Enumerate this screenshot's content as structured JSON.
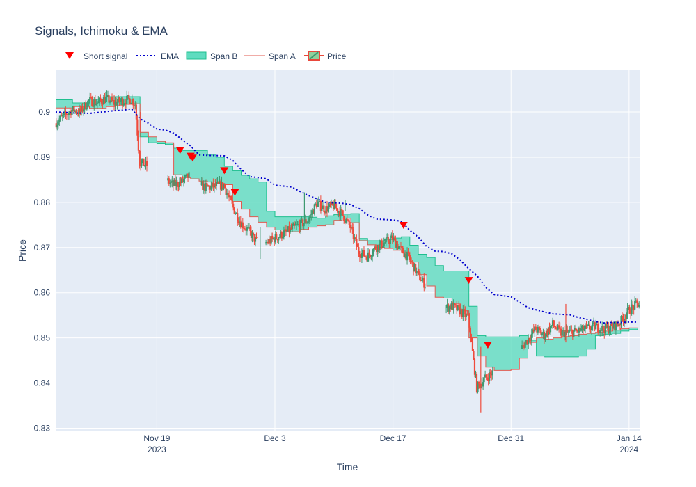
{
  "chart_data": {
    "type": "candlestick",
    "title": "Signals, Ichimoku & EMA",
    "xlabel": "Time",
    "ylabel": "Price",
    "ylim": [
      0.8293,
      0.9094
    ],
    "xlim": [
      "2023-11-07",
      "2024-01-15T08:00"
    ],
    "yticks": [
      0.83,
      0.84,
      0.85,
      0.86,
      0.87,
      0.88,
      0.89,
      0.9
    ],
    "ytick_labels": [
      "0.83",
      "0.84",
      "0.85",
      "0.86",
      "0.87",
      "0.88",
      "0.89",
      "0.9"
    ],
    "xticks": [
      {
        "date": "2023-11-19",
        "line1": "Nov 19",
        "line2": "2023"
      },
      {
        "date": "2023-12-03",
        "line1": "Dec 3",
        "line2": ""
      },
      {
        "date": "2023-12-17",
        "line1": "Dec 17",
        "line2": ""
      },
      {
        "date": "2023-12-31",
        "line1": "Dec 31",
        "line2": ""
      },
      {
        "date": "2024-01-14",
        "line1": "Jan 14",
        "line2": "2024"
      }
    ],
    "grid": true,
    "legend_position": "top-left",
    "legend": [
      {
        "name": "Short signal",
        "kind": "marker",
        "color": "#ff0000"
      },
      {
        "name": "EMA",
        "kind": "dotted-line",
        "color": "#0000cd"
      },
      {
        "name": "Span B",
        "kind": "fill",
        "color": "#3fd6b0"
      },
      {
        "name": "Span A",
        "kind": "line",
        "color": "#e05a4f"
      },
      {
        "name": "Price",
        "kind": "candle",
        "color": "#e9483b"
      }
    ],
    "colors": {
      "increasing": "#3d9970",
      "decreasing": "#ef4b3c",
      "cloud_fill": "#5fdcbf",
      "span_b_line": "#1fbf8f",
      "span_a_line": "#e05a4f",
      "ema": "#0000cd",
      "signal": "#ff0000",
      "plot_bg": "#e5ecf6",
      "grid": "#ffffff"
    },
    "series": {
      "ema": {
        "x": [
          "2023-11-07",
          "2023-11-09",
          "2023-11-11",
          "2023-11-13",
          "2023-11-14",
          "2023-11-15",
          "2023-11-16",
          "2023-11-17",
          "2023-11-18",
          "2023-11-19",
          "2023-11-20",
          "2023-11-21",
          "2023-11-23",
          "2023-11-24",
          "2023-11-25",
          "2023-11-27",
          "2023-11-28",
          "2023-11-29",
          "2023-11-30",
          "2023-12-01",
          "2023-12-02",
          "2023-12-03",
          "2023-12-04",
          "2023-12-05",
          "2023-12-06",
          "2023-12-07",
          "2023-12-08",
          "2023-12-09",
          "2023-12-10",
          "2023-12-11",
          "2023-12-12",
          "2023-12-13",
          "2023-12-14",
          "2023-12-15",
          "2023-12-16",
          "2023-12-17",
          "2023-12-18",
          "2023-12-19",
          "2023-12-20",
          "2023-12-21",
          "2023-12-22",
          "2023-12-23",
          "2023-12-24",
          "2023-12-25",
          "2023-12-26",
          "2023-12-27",
          "2023-12-28",
          "2023-12-29",
          "2023-12-30",
          "2023-12-31",
          "2024-01-01",
          "2024-01-02",
          "2024-01-03",
          "2024-01-04",
          "2024-01-05",
          "2024-01-06",
          "2024-01-07",
          "2024-01-08",
          "2024-01-09",
          "2024-01-10",
          "2024-01-11",
          "2024-01-12",
          "2024-01-13",
          "2024-01-14",
          "2024-01-15"
        ],
        "y": [
          0.9,
          0.8998,
          0.8997,
          0.9001,
          0.9003,
          0.9004,
          0.9007,
          0.8985,
          0.8975,
          0.8962,
          0.896,
          0.8953,
          0.8925,
          0.8905,
          0.8904,
          0.8903,
          0.8893,
          0.8873,
          0.8857,
          0.8855,
          0.8852,
          0.8838,
          0.8836,
          0.8834,
          0.8824,
          0.8815,
          0.8808,
          0.88,
          0.8799,
          0.8798,
          0.8795,
          0.8786,
          0.8772,
          0.8763,
          0.8762,
          0.8761,
          0.8758,
          0.8738,
          0.8723,
          0.8702,
          0.8692,
          0.8691,
          0.8686,
          0.8672,
          0.8653,
          0.8637,
          0.8612,
          0.8596,
          0.8593,
          0.8591,
          0.8579,
          0.8567,
          0.8562,
          0.8557,
          0.8553,
          0.8552,
          0.8551,
          0.8545,
          0.8541,
          0.8536,
          0.8533,
          0.8534,
          0.8534,
          0.8535,
          0.8535
        ]
      },
      "span_a": {
        "x": [
          "2023-11-07",
          "2023-11-09",
          "2023-11-11",
          "2023-11-13",
          "2023-11-14",
          "2023-11-15",
          "2023-11-16",
          "2023-11-17",
          "2023-11-18",
          "2023-11-19",
          "2023-11-20",
          "2023-11-21",
          "2023-11-22",
          "2023-11-23",
          "2023-11-24",
          "2023-11-25",
          "2023-11-26",
          "2023-11-27",
          "2023-11-28",
          "2023-11-29",
          "2023-11-30",
          "2023-12-01",
          "2023-12-02",
          "2023-12-03",
          "2023-12-04",
          "2023-12-05",
          "2023-12-06",
          "2023-12-07",
          "2023-12-08",
          "2023-12-09",
          "2023-12-10",
          "2023-12-11",
          "2023-12-12",
          "2023-12-13",
          "2023-12-14",
          "2023-12-15",
          "2023-12-16",
          "2023-12-17",
          "2023-12-18",
          "2023-12-19",
          "2023-12-20",
          "2023-12-21",
          "2023-12-22",
          "2023-12-23",
          "2023-12-24",
          "2023-12-25",
          "2023-12-26",
          "2023-12-27",
          "2023-12-28",
          "2023-12-29",
          "2023-12-30",
          "2023-12-31",
          "2024-01-01",
          "2024-01-02",
          "2024-01-03",
          "2024-01-04",
          "2024-01-05",
          "2024-01-06",
          "2024-01-07",
          "2024-01-08",
          "2024-01-09",
          "2024-01-10",
          "2024-01-11",
          "2024-01-12",
          "2024-01-13",
          "2024-01-14",
          "2024-01-15"
        ],
        "y": [
          0.9009,
          0.9012,
          0.9008,
          0.9012,
          0.9015,
          0.9017,
          0.9018,
          0.8955,
          0.8945,
          0.8935,
          0.8932,
          0.8861,
          0.8855,
          0.8852,
          0.8847,
          0.8845,
          0.8842,
          0.8839,
          0.8802,
          0.8785,
          0.8768,
          0.8756,
          0.8745,
          0.8739,
          0.8735,
          0.8735,
          0.874,
          0.8745,
          0.8748,
          0.875,
          0.876,
          0.8765,
          0.8755,
          0.8715,
          0.8706,
          0.87,
          0.8698,
          0.8694,
          0.869,
          0.8668,
          0.864,
          0.8615,
          0.859,
          0.8588,
          0.8575,
          0.856,
          0.85,
          0.846,
          0.8435,
          0.8428,
          0.8428,
          0.843,
          0.8455,
          0.849,
          0.85,
          0.8497,
          0.85,
          0.8503,
          0.8505,
          0.8508,
          0.851,
          0.8512,
          0.8515,
          0.8517,
          0.852,
          0.8522,
          0.8523
        ]
      },
      "span_b": {
        "x": [
          "2023-11-07",
          "2023-11-09",
          "2023-11-11",
          "2023-11-13",
          "2023-11-14",
          "2023-11-15",
          "2023-11-16",
          "2023-11-17",
          "2023-11-18",
          "2023-11-19",
          "2023-11-20",
          "2023-11-21",
          "2023-11-22",
          "2023-11-23",
          "2023-11-24",
          "2023-11-25",
          "2023-11-26",
          "2023-11-27",
          "2023-11-28",
          "2023-11-29",
          "2023-11-30",
          "2023-12-01",
          "2023-12-02",
          "2023-12-03",
          "2023-12-04",
          "2023-12-05",
          "2023-12-06",
          "2023-12-07",
          "2023-12-08",
          "2023-12-09",
          "2023-12-10",
          "2023-12-11",
          "2023-12-12",
          "2023-12-13",
          "2023-12-14",
          "2023-12-15",
          "2023-12-16",
          "2023-12-17",
          "2023-12-18",
          "2023-12-19",
          "2023-12-20",
          "2023-12-21",
          "2023-12-22",
          "2023-12-23",
          "2023-12-24",
          "2023-12-25",
          "2023-12-26",
          "2023-12-27",
          "2023-12-28",
          "2023-12-29",
          "2023-12-30",
          "2023-12-31",
          "2024-01-01",
          "2024-01-02",
          "2024-01-03",
          "2024-01-04",
          "2024-01-05",
          "2024-01-06",
          "2024-01-07",
          "2024-01-08",
          "2024-01-09",
          "2024-01-10",
          "2024-01-11",
          "2024-01-12",
          "2024-01-13",
          "2024-01-14",
          "2024-01-15"
        ],
        "y": [
          0.9027,
          0.902,
          0.9028,
          0.9034,
          0.9034,
          0.9034,
          0.9034,
          0.8945,
          0.8932,
          0.893,
          0.8928,
          0.892,
          0.8915,
          0.8915,
          0.8915,
          0.8905,
          0.89,
          0.888,
          0.887,
          0.886,
          0.8852,
          0.8845,
          0.878,
          0.8768,
          0.8768,
          0.8768,
          0.8768,
          0.8767,
          0.8765,
          0.877,
          0.8773,
          0.8774,
          0.8775,
          0.872,
          0.8715,
          0.8715,
          0.8718,
          0.8721,
          0.8724,
          0.8705,
          0.8685,
          0.8678,
          0.866,
          0.8648,
          0.8648,
          0.8648,
          0.857,
          0.8505,
          0.8502,
          0.8502,
          0.8502,
          0.8502,
          0.8505,
          0.8495,
          0.846,
          0.8458,
          0.8458,
          0.8458,
          0.8458,
          0.846,
          0.8475,
          0.8505,
          0.8508,
          0.851,
          0.8515,
          0.8518,
          0.852
        ]
      },
      "signals": {
        "x": [
          "2023-11-21T18:00",
          "2023-11-23T00:00",
          "2023-11-23T06:00",
          "2023-11-27T00:00",
          "2023-11-28T06:00",
          "2023-12-18T06:00",
          "2023-12-26T00:00",
          "2023-12-28T06:00"
        ],
        "y": [
          0.8915,
          0.8902,
          0.8898,
          0.887,
          0.8822,
          0.8749,
          0.8627,
          0.8484
        ]
      },
      "price_path": {
        "x": [
          "2023-11-07",
          "2023-11-08",
          "2023-11-09",
          "2023-11-10",
          "2023-11-11",
          "2023-11-12",
          "2023-11-13",
          "2023-11-14",
          "2023-11-15",
          "2023-11-16",
          "2023-11-16T12:00",
          "2023-11-17",
          "2023-11-18",
          "2023-11-19",
          "2023-11-20",
          "2023-11-21",
          "2023-11-22",
          "2023-11-23",
          "2023-11-24",
          "2023-11-25",
          "2023-11-26",
          "2023-11-27",
          "2023-11-28",
          "2023-11-29",
          "2023-11-30",
          "2023-12-01",
          "2023-12-02",
          "2023-12-03",
          "2023-12-04",
          "2023-12-05",
          "2023-12-06",
          "2023-12-07",
          "2023-12-08",
          "2023-12-09",
          "2023-12-10",
          "2023-12-11",
          "2023-12-12",
          "2023-12-13",
          "2023-12-14",
          "2023-12-15",
          "2023-12-16",
          "2023-12-17",
          "2023-12-18",
          "2023-12-19",
          "2023-12-20",
          "2023-12-21",
          "2023-12-22",
          "2023-12-23",
          "2023-12-24",
          "2023-12-25",
          "2023-12-26",
          "2023-12-27",
          "2023-12-28",
          "2023-12-29",
          "2023-12-30",
          "2023-12-31",
          "2024-01-01",
          "2024-01-02",
          "2024-01-03",
          "2024-01-04",
          "2024-01-05",
          "2024-01-06",
          "2024-01-07",
          "2024-01-08",
          "2024-01-09",
          "2024-01-10",
          "2024-01-11",
          "2024-01-12",
          "2024-01-13",
          "2024-01-14",
          "2024-01-15"
        ],
        "y": [
          0.8975,
          0.899,
          0.9005,
          0.9,
          0.9025,
          0.902,
          0.903,
          0.902,
          0.9025,
          0.9028,
          0.9018,
          0.889,
          0.888,
          0.8868,
          0.8852,
          0.8838,
          0.8845,
          0.886,
          0.884,
          0.8832,
          0.8836,
          0.8838,
          0.8792,
          0.8755,
          0.8735,
          0.871,
          0.871,
          0.872,
          0.873,
          0.874,
          0.875,
          0.876,
          0.8798,
          0.8785,
          0.8792,
          0.8775,
          0.8745,
          0.869,
          0.868,
          0.87,
          0.871,
          0.872,
          0.8695,
          0.8675,
          0.864,
          0.8615,
          0.858,
          0.8565,
          0.857,
          0.856,
          0.8545,
          0.839,
          0.841,
          0.8425,
          0.8432,
          0.844,
          0.847,
          0.8495,
          0.852,
          0.8505,
          0.853,
          0.851,
          0.8512,
          0.8515,
          0.852,
          0.8525,
          0.852,
          0.8522,
          0.8535,
          0.856,
          0.8575
        ]
      }
    }
  }
}
